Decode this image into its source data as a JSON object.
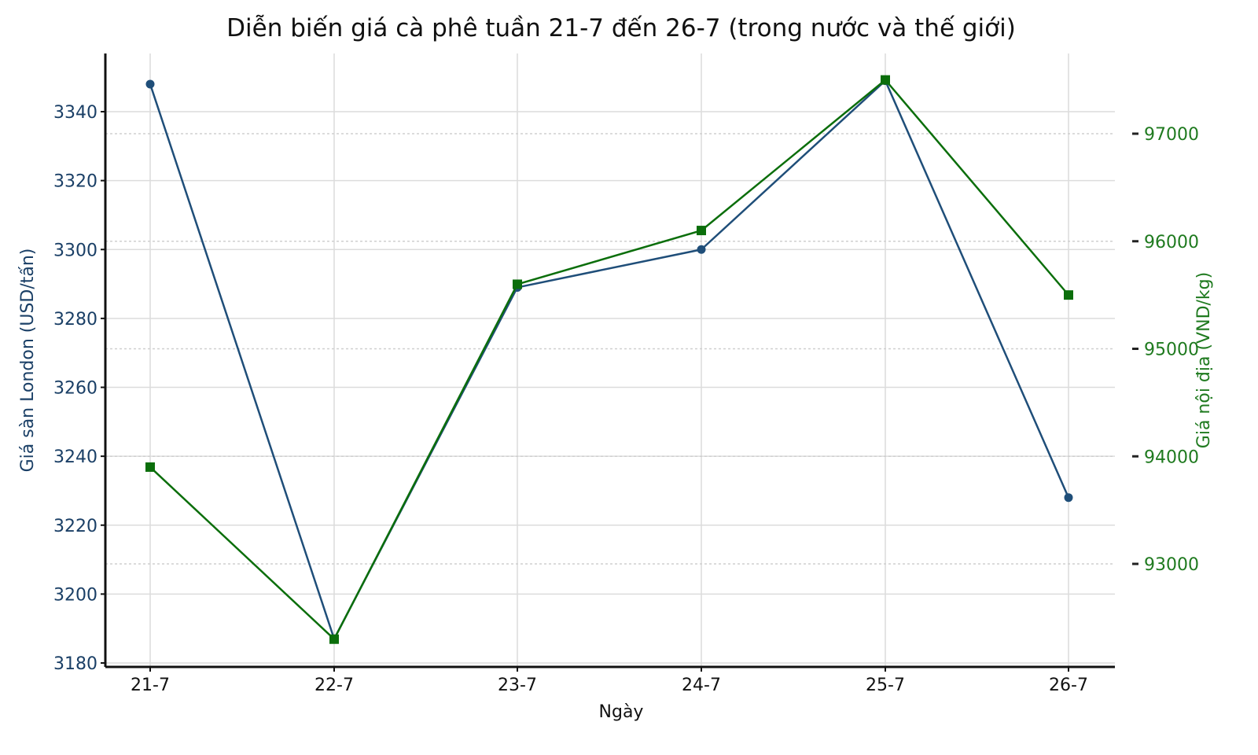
{
  "chart_data": {
    "type": "line",
    "title": "Diễn biến giá cà phê tuần 21-7 đến 26-7 (trong nước và thế giới)",
    "xlabel": "Ngày",
    "ylabel": "Giá sàn London (USD/tấn)",
    "ylabel_right": "Giá nội địa (VND/kg)",
    "categories": [
      "21-7",
      "22-7",
      "23-7",
      "24-7",
      "25-7",
      "26-7"
    ],
    "series": [
      {
        "name": "Giá sàn London (USD/tấn)",
        "axis": "left",
        "color": "#1f4e79",
        "marker": "circle",
        "values": [
          3348,
          3187,
          3289,
          3300,
          3349,
          3228
        ]
      },
      {
        "name": "Giá nội địa (VND/kg)",
        "axis": "right",
        "color": "#0b6e0b",
        "marker": "square",
        "values": [
          93900,
          92300,
          95600,
          96100,
          97500,
          95500
        ]
      }
    ],
    "yticks_left": [
      3180,
      3200,
      3220,
      3240,
      3260,
      3280,
      3300,
      3320,
      3340
    ],
    "yticks_right": [
      93000,
      94000,
      95000,
      96000,
      97000
    ],
    "ylim_left": [
      3178,
      3356
    ],
    "grid": true,
    "legend": null
  }
}
